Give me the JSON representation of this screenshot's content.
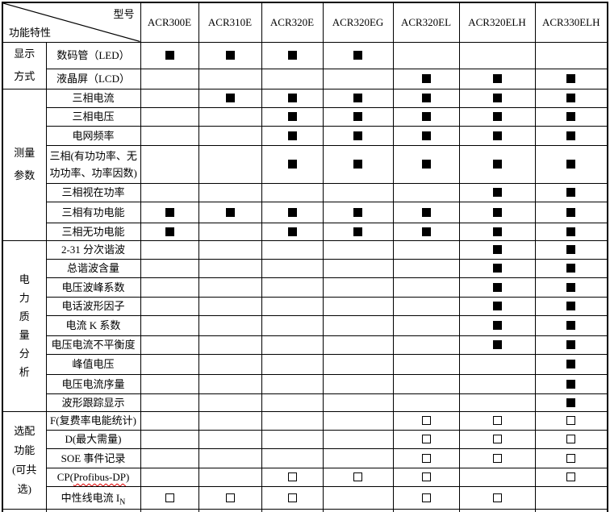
{
  "table": {
    "corner": {
      "top_right_label": "型号",
      "bottom_left_label": "功能特性"
    },
    "models": [
      "ACR300E",
      "ACR310E",
      "ACR320E",
      "ACR320EG",
      "ACR320EL",
      "ACR320ELH",
      "ACR330ELH"
    ],
    "symbols": {
      "standard": "■",
      "optional": "□"
    },
    "colors": {
      "text": "#000000",
      "border": "#000000",
      "spellcheck_underline": "#e00000",
      "background": "#ffffff"
    },
    "groups": [
      {
        "label": "显示方式",
        "label_lines": [
          "显示",
          "方式"
        ],
        "rows": [
          {
            "feature_lines": [
              "数码管（LED）"
            ],
            "cells": [
              1,
              1,
              1,
              1,
              0,
              0,
              0
            ]
          },
          {
            "feature_lines": [
              "液晶屏（LCD）"
            ],
            "cells": [
              0,
              0,
              0,
              0,
              1,
              1,
              1
            ]
          }
        ]
      },
      {
        "label": "测量参数",
        "label_lines": [
          "测量",
          "参数"
        ],
        "rows": [
          {
            "feature_lines": [
              "三相电流"
            ],
            "cells": [
              0,
              1,
              1,
              1,
              1,
              1,
              1
            ]
          },
          {
            "feature_lines": [
              "三相电压"
            ],
            "cells": [
              0,
              0,
              1,
              1,
              1,
              1,
              1
            ]
          },
          {
            "feature_lines": [
              "电网频率"
            ],
            "cells": [
              0,
              0,
              1,
              1,
              1,
              1,
              1
            ]
          },
          {
            "feature_lines": [
              "三相(有功功率、无",
              "功功率、功率因数)"
            ],
            "cells": [
              0,
              0,
              1,
              1,
              1,
              1,
              1
            ]
          },
          {
            "feature_lines": [
              "三相视在功率"
            ],
            "cells": [
              0,
              0,
              0,
              0,
              0,
              1,
              1
            ]
          },
          {
            "feature_lines": [
              "三相有功电能"
            ],
            "cells": [
              1,
              1,
              1,
              1,
              1,
              1,
              1
            ]
          },
          {
            "feature_lines": [
              "三相无功电能"
            ],
            "cells": [
              1,
              0,
              1,
              1,
              1,
              1,
              1
            ]
          }
        ]
      },
      {
        "label": "电力质量分析",
        "label_lines": [
          "电",
          "力",
          "质",
          "量",
          "分",
          "析"
        ],
        "rows": [
          {
            "feature_lines": [
              "2-31 分次谐波"
            ],
            "cells": [
              0,
              0,
              0,
              0,
              0,
              1,
              1
            ]
          },
          {
            "feature_lines": [
              "总谐波含量"
            ],
            "cells": [
              0,
              0,
              0,
              0,
              0,
              1,
              1
            ]
          },
          {
            "feature_lines": [
              "电压波峰系数"
            ],
            "cells": [
              0,
              0,
              0,
              0,
              0,
              1,
              1
            ]
          },
          {
            "feature_lines": [
              "电话波形因子"
            ],
            "cells": [
              0,
              0,
              0,
              0,
              0,
              1,
              1
            ]
          },
          {
            "feature_lines": [
              "电流 K 系数"
            ],
            "cells": [
              0,
              0,
              0,
              0,
              0,
              1,
              1
            ]
          },
          {
            "feature_lines": [
              "电压电流不平衡度"
            ],
            "cells": [
              0,
              0,
              0,
              0,
              0,
              1,
              1
            ]
          },
          {
            "feature_lines": [
              "峰值电压"
            ],
            "cells": [
              0,
              0,
              0,
              0,
              0,
              0,
              1
            ]
          },
          {
            "feature_lines": [
              "电压电流序量"
            ],
            "cells": [
              0,
              0,
              0,
              0,
              0,
              0,
              1
            ]
          },
          {
            "feature_lines": [
              "波形跟踪显示"
            ],
            "cells": [
              0,
              0,
              0,
              0,
              0,
              0,
              1
            ]
          }
        ]
      },
      {
        "label": "选配功能(可共选)",
        "label_lines": [
          "选配",
          "功能",
          "(可共",
          "选)"
        ],
        "rows": [
          {
            "feature_lines": [
              "F(复费率电能统计)"
            ],
            "cells": [
              0,
              0,
              0,
              0,
              2,
              2,
              2
            ]
          },
          {
            "feature_lines": [
              "D(最大需量)"
            ],
            "cells": [
              0,
              0,
              0,
              0,
              2,
              2,
              2
            ]
          },
          {
            "feature_lines": [
              "SOE 事件记录"
            ],
            "cells": [
              0,
              0,
              0,
              0,
              2,
              2,
              2
            ]
          },
          {
            "feature_lines": [
              "CP(Profibus-DP)"
            ],
            "wavy_part": {
              "pre": "CP(",
              "wavy": "Profibus-DP",
              "post": ")"
            },
            "cells": [
              0,
              0,
              2,
              2,
              2,
              0,
              2
            ]
          },
          {
            "feature_lines": [
              "中性线电流 IN"
            ],
            "sub_part": {
              "pre": "中性线电流 I",
              "sub": "N"
            },
            "cells": [
              2,
              2,
              2,
              0,
              2,
              2,
              0
            ]
          }
        ]
      }
    ]
  }
}
